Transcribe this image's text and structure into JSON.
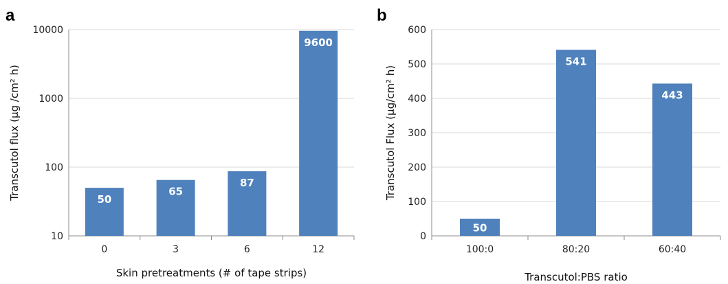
{
  "chart_data": [
    {
      "panel": "a",
      "type": "bar",
      "yscale": "log",
      "categories": [
        "0",
        "3",
        "6",
        "12"
      ],
      "values": [
        50,
        65,
        87,
        9600
      ],
      "data_labels": [
        "50",
        "65",
        "87",
        "9600"
      ],
      "xlabel": "Skin pretreatments (# of tape strips)",
      "ylabel": "Transcutol flux (µg /cm² h)",
      "ylim": [
        10,
        10000
      ],
      "yticks": [
        "10",
        "100",
        "1000",
        "10000"
      ],
      "grid": true,
      "color": "#4f81bd"
    },
    {
      "panel": "b",
      "type": "bar",
      "yscale": "linear",
      "categories": [
        "100:0",
        "80:20",
        "60:40"
      ],
      "values": [
        50,
        541,
        443
      ],
      "data_labels": [
        "50",
        "541",
        "443"
      ],
      "xlabel": "Transcutol:PBS ratio",
      "ylabel": "Transcutol Flux (µg/cm² h)",
      "ylim": [
        0,
        600
      ],
      "yticks": [
        "0",
        "100",
        "200",
        "300",
        "400",
        "500",
        "600"
      ],
      "grid": true,
      "color": "#4f81bd"
    }
  ]
}
